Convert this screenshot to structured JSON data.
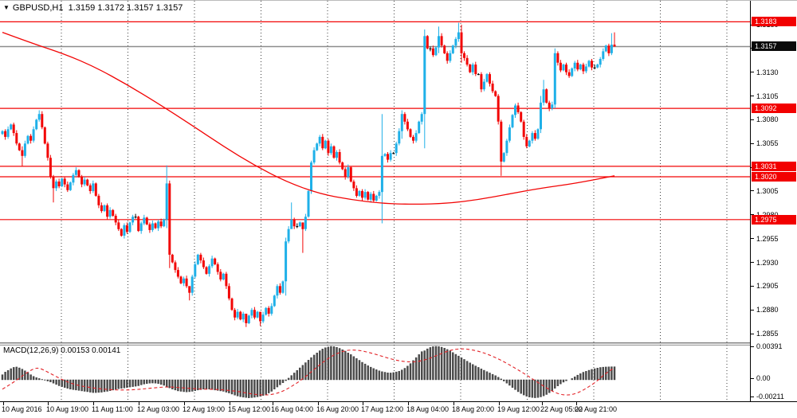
{
  "header": {
    "symbol_period": "GBPUSD,H1",
    "ohlc_line": "1.3159 1.3172 1.3157 1.3157",
    "dropdown_icon": "▼"
  },
  "colors": {
    "up_candle": "#1FB0E8",
    "down_candle": "#F20505",
    "doji_candle": "#000000",
    "sr_line": "#F20505",
    "ma_line": "#F20505",
    "signal_line": "#E32227",
    "current_price_line": "#8C8C8C",
    "badge_red_bg": "#F20000",
    "badge_black_bg": "#0A0A0A",
    "macd_bar": "#4F4F4F",
    "grid": "#3C3C3C",
    "axis_text": "#000000"
  },
  "price_axis": {
    "scale_labels": [
      "1.3180",
      "1.3155",
      "1.3130",
      "1.3105",
      "1.3080",
      "1.3055",
      "1.3030",
      "1.3005",
      "1.2980",
      "1.2955",
      "1.2930",
      "1.2905",
      "1.2880",
      "1.2855"
    ],
    "red_badges": [
      "1.3183",
      "1.3092",
      "1.3031",
      "1.3020",
      "1.2975"
    ],
    "black_badge": "1.3157"
  },
  "macd_axis": {
    "labels": [
      [
        "0.00391",
        434
      ],
      [
        "0.00",
        474
      ],
      [
        "-0.00211",
        497
      ]
    ]
  },
  "time_axis": {
    "labels": [
      [
        "10 Aug 2016",
        2
      ],
      [
        "10 Aug 19:00",
        58
      ],
      [
        "11 Aug 11:00",
        115
      ],
      [
        "12 Aug 03:00",
        172
      ],
      [
        "12 Aug 19:00",
        229
      ],
      [
        "15 Aug 12:00",
        286
      ],
      [
        "16 Aug 04:00",
        340
      ],
      [
        "16 Aug 20:00",
        397
      ],
      [
        "17 Aug 12:00",
        453
      ],
      [
        "18 Aug 04:00",
        510
      ],
      [
        "18 Aug 20:00",
        567
      ],
      [
        "19 Aug 12:00",
        624
      ],
      [
        "22 Aug 05:00",
        678
      ],
      [
        "22 Aug 21:00",
        721
      ]
    ]
  },
  "chart_data": {
    "type": "candlestick+macd",
    "symbol": "GBPUSD",
    "timeframe": "H1",
    "last_candle_ohlc": [
      1.3159,
      1.3172,
      1.3157,
      1.3157
    ],
    "price_axis_range": [
      1.2855,
      1.318
    ],
    "sr_levels": [
      1.3183,
      1.3092,
      1.3031,
      1.302,
      1.2975
    ],
    "current_price": 1.3157,
    "first_open_pips": 13065,
    "closes_pips": [
      13068,
      13062,
      13070,
      13075,
      13066,
      13055,
      13048,
      13042,
      13055,
      13063,
      13058,
      13070,
      13080,
      13086,
      13072,
      13055,
      13040,
      13020,
      13008,
      13015,
      13010,
      13018,
      13012,
      13006,
      13014,
      13022,
      13027,
      13020,
      13012,
      13017,
      13011,
      13005,
      13013,
      13000,
      12990,
      12984,
      12990,
      12978,
      12985,
      12979,
      12972,
      12965,
      12958,
      12969,
      12962,
      12972,
      12978,
      12978,
      12963,
      12971,
      12977,
      12970,
      12964,
      12971,
      12966,
      12973,
      12968,
      12975,
      13013,
      12938,
      12930,
      12922,
      12915,
      12908,
      12913,
      12905,
      12898,
      12915,
      12928,
      12938,
      12932,
      12925,
      12918,
      12926,
      12934,
      12928,
      12920,
      12912,
      12918,
      12905,
      12892,
      12880,
      12872,
      12878,
      12870,
      12876,
      12866,
      12874,
      12880,
      12872,
      12878,
      12868,
      12875,
      12882,
      12876,
      12884,
      12895,
      12905,
      12898,
      12910,
      12952,
      12965,
      12975,
      12968,
      12968,
      12972,
      12965,
      12978,
      13005,
      13035,
      13048,
      13055,
      13062,
      13050,
      13058,
      13045,
      13052,
      13040,
      13046,
      13035,
      13028,
      13020,
      13030,
      13015,
      13008,
      13000,
      13005,
      12998,
      13004,
      12996,
      13002,
      12995,
      13000,
      13004,
      13042,
      13044,
      13038,
      13045,
      13045,
      13055,
      13068,
      13086,
      13078,
      13070,
      13062,
      13058,
      13066,
      13078,
      13086,
      13168,
      13155,
      13155,
      13148,
      13156,
      13168,
      13158,
      13150,
      13142,
      13150,
      13158,
      13165,
      13172,
      13150,
      13145,
      13138,
      13130,
      13138,
      13128,
      13128,
      13112,
      13120,
      13128,
      13118,
      13110,
      13105,
      13078,
      13036,
      13045,
      13058,
      13072,
      13085,
      13095,
      13088,
      13078,
      13062,
      13052,
      13058,
      13066,
      13060,
      13070,
      13098,
      13112,
      13098,
      13092,
      13096,
      13150,
      13140,
      13132,
      13138,
      13130,
      13126,
      13134,
      13140,
      13133,
      13138,
      13131,
      13136,
      13142,
      13135,
      13135,
      13138,
      13144,
      13152,
      13158,
      13150,
      13159,
      13157
    ],
    "wick_overrides_pips": {
      "7": [
        13052,
        13031
      ],
      "13": [
        13090,
        13078
      ],
      "18": [
        13022,
        12993
      ],
      "58": [
        13032,
        12966
      ],
      "59": [
        13016,
        12924
      ],
      "66": [
        12902,
        12890
      ],
      "86": [
        12874,
        12862
      ],
      "91": [
        12876,
        12863
      ],
      "100": [
        12956,
        12895
      ],
      "102": [
        12993,
        12966
      ],
      "106": [
        12972,
        12940
      ],
      "134": [
        13086,
        12971
      ],
      "141": [
        13090,
        13060
      ],
      "149": [
        13175,
        13050
      ],
      "154": [
        13178,
        13150
      ],
      "161": [
        13182,
        13162
      ],
      "162": [
        13180,
        13140
      ],
      "176": [
        13080,
        13021
      ],
      "190": [
        13105,
        13066
      ],
      "191": [
        13122,
        13095
      ],
      "195": [
        13155,
        13092
      ],
      "215": [
        13171,
        13148
      ],
      "216": [
        13172,
        13157
      ]
    },
    "ma_keypoints": [
      [
        0,
        1.3172
      ],
      [
        10,
        1.3161
      ],
      [
        22,
        1.3149
      ],
      [
        33,
        1.3135
      ],
      [
        44,
        1.3117
      ],
      [
        55,
        1.3097
      ],
      [
        67,
        1.3074
      ],
      [
        78,
        1.3052
      ],
      [
        89,
        1.3032
      ],
      [
        100,
        1.3015
      ],
      [
        112,
        1.3002
      ],
      [
        123,
        1.2996
      ],
      [
        134,
        1.2992
      ],
      [
        145,
        1.2991
      ],
      [
        157,
        1.2992
      ],
      [
        168,
        1.2996
      ],
      [
        179,
        1.3002
      ],
      [
        190,
        1.3008
      ],
      [
        202,
        1.3013
      ],
      [
        216,
        1.3021
      ]
    ],
    "macd": {
      "display": "MACD(12,26,9) 0.00153 0.00141",
      "current_macd": 0.00153,
      "current_signal": 0.00141,
      "axis_max": 0.00391,
      "axis_min": -0.00211,
      "values_1e5": [
        60,
        90,
        110,
        130,
        145,
        150,
        140,
        125,
        105,
        85,
        60,
        40,
        25,
        15,
        5,
        -5,
        -15,
        -25,
        -40,
        -55,
        -70,
        -80,
        -90,
        -100,
        -110,
        -115,
        -120,
        -125,
        -130,
        -135,
        -140,
        -145,
        -150,
        -150,
        -148,
        -145,
        -140,
        -135,
        -128,
        -120,
        -112,
        -105,
        -100,
        -95,
        -90,
        -85,
        -80,
        -75,
        -70,
        -60,
        -50,
        -45,
        -40,
        -38,
        -40,
        -45,
        -55,
        -65,
        -80,
        -95,
        -110,
        -120,
        -130,
        -135,
        -140,
        -142,
        -140,
        -135,
        -128,
        -120,
        -115,
        -110,
        -108,
        -110,
        -115,
        -120,
        -125,
        -130,
        -135,
        -145,
        -155,
        -168,
        -180,
        -190,
        -198,
        -204,
        -208,
        -211,
        -209,
        -205,
        -199,
        -192,
        -183,
        -170,
        -155,
        -135,
        -110,
        -85,
        -60,
        -35,
        -10,
        20,
        50,
        80,
        110,
        140,
        170,
        200,
        230,
        260,
        290,
        315,
        340,
        360,
        375,
        385,
        391,
        388,
        380,
        368,
        352,
        335,
        315,
        295,
        272,
        250,
        228,
        205,
        185,
        165,
        148,
        132,
        118,
        105,
        95,
        88,
        82,
        80,
        85,
        92,
        100,
        115,
        135,
        160,
        190,
        225,
        260,
        295,
        330,
        340,
        362,
        378,
        388,
        391,
        389,
        382,
        370,
        355,
        338,
        318,
        298,
        278,
        258,
        238,
        218,
        198,
        180,
        162,
        145,
        128,
        112,
        96,
        80,
        64,
        48,
        30,
        10,
        -15,
        -40,
        -65,
        -90,
        -115,
        -140,
        -160,
        -178,
        -192,
        -202,
        -208,
        -210,
        -208,
        -200,
        -188,
        -172,
        -152,
        -128,
        -100,
        -72,
        -48,
        -28,
        -12,
        0,
        15,
        35,
        55,
        72,
        88,
        100,
        112,
        122,
        130,
        138,
        144,
        148,
        150,
        152,
        153,
        153
      ],
      "signal_keypoints_1e5": [
        [
          0,
          -110
        ],
        [
          4,
          -30
        ],
        [
          8,
          70
        ],
        [
          11,
          130
        ],
        [
          13,
          140
        ],
        [
          16,
          90
        ],
        [
          20,
          20
        ],
        [
          24,
          -40
        ],
        [
          28,
          -75
        ],
        [
          34,
          -105
        ],
        [
          40,
          -120
        ],
        [
          46,
          -118
        ],
        [
          52,
          -100
        ],
        [
          58,
          -80
        ],
        [
          64,
          -95
        ],
        [
          70,
          -110
        ],
        [
          76,
          -112
        ],
        [
          82,
          -130
        ],
        [
          86,
          -155
        ],
        [
          90,
          -175
        ],
        [
          94,
          -180
        ],
        [
          98,
          -150
        ],
        [
          102,
          -80
        ],
        [
          106,
          10
        ],
        [
          110,
          120
        ],
        [
          114,
          230
        ],
        [
          118,
          310
        ],
        [
          122,
          350
        ],
        [
          126,
          345
        ],
        [
          130,
          315
        ],
        [
          134,
          275
        ],
        [
          138,
          235
        ],
        [
          142,
          210
        ],
        [
          146,
          208
        ],
        [
          150,
          240
        ],
        [
          154,
          295
        ],
        [
          158,
          345
        ],
        [
          161,
          362
        ],
        [
          164,
          360
        ],
        [
          168,
          335
        ],
        [
          172,
          290
        ],
        [
          176,
          230
        ],
        [
          180,
          155
        ],
        [
          184,
          75
        ],
        [
          188,
          -10
        ],
        [
          192,
          -95
        ],
        [
          195,
          -150
        ],
        [
          198,
          -180
        ],
        [
          201,
          -175
        ],
        [
          204,
          -140
        ],
        [
          207,
          -80
        ],
        [
          210,
          -10
        ],
        [
          212,
          50
        ],
        [
          214,
          100
        ],
        [
          216,
          141
        ]
      ]
    }
  }
}
